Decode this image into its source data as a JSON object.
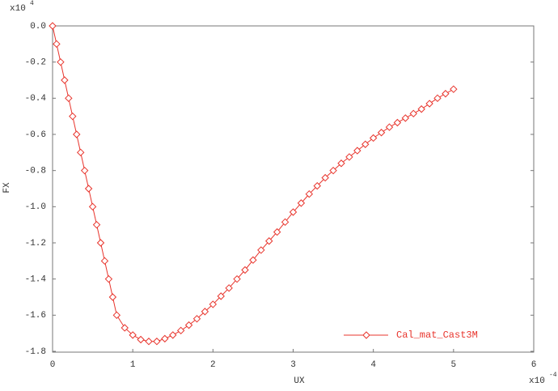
{
  "chart_data": {
    "type": "line",
    "x_label": "UX",
    "y_label": "FX",
    "x_scale": {
      "base": "x10",
      "exponent": "-4"
    },
    "y_scale": {
      "base": "x10",
      "exponent": "4"
    },
    "x": [
      0,
      0.05,
      0.1,
      0.15,
      0.2,
      0.25,
      0.3,
      0.35,
      0.4,
      0.45,
      0.5,
      0.55,
      0.6,
      0.65,
      0.7,
      0.75,
      0.8,
      0.9,
      1.0,
      1.1,
      1.2,
      1.3,
      1.4,
      1.5,
      1.6,
      1.7,
      1.8,
      1.9,
      2.0,
      2.1,
      2.2,
      2.3,
      2.4,
      2.5,
      2.6,
      2.7,
      2.8,
      2.9,
      3.0,
      3.1,
      3.2,
      3.3,
      3.4,
      3.5,
      3.6,
      3.7,
      3.8,
      3.9,
      4.0,
      4.1,
      4.2,
      4.3,
      4.4,
      4.5,
      4.6,
      4.7,
      4.8,
      4.9,
      5.0
    ],
    "series": [
      {
        "name": "Cal_mat_Cast3M",
        "color": "#e8342c",
        "values": [
          0,
          -0.1,
          -0.2,
          -0.3,
          -0.4,
          -0.5,
          -0.6,
          -0.7,
          -0.8,
          -0.9,
          -1.0,
          -1.1,
          -1.2,
          -1.3,
          -1.4,
          -1.5,
          -1.6,
          -1.67,
          -1.71,
          -1.735,
          -1.745,
          -1.745,
          -1.73,
          -1.71,
          -1.685,
          -1.655,
          -1.62,
          -1.58,
          -1.54,
          -1.495,
          -1.45,
          -1.4,
          -1.35,
          -1.295,
          -1.24,
          -1.19,
          -1.14,
          -1.085,
          -1.03,
          -0.98,
          -0.93,
          -0.885,
          -0.84,
          -0.8,
          -0.76,
          -0.725,
          -0.69,
          -0.655,
          -0.62,
          -0.59,
          -0.56,
          -0.535,
          -0.51,
          -0.485,
          -0.46,
          -0.43,
          -0.4,
          -0.375,
          -0.35
        ]
      }
    ],
    "xlim": [
      0,
      6
    ],
    "xticks": [
      0,
      1,
      2,
      3,
      4,
      5,
      6
    ],
    "ylim": [
      -1.8,
      0
    ],
    "yticks": [
      {
        "value": 0,
        "label": "0.0"
      },
      -0.2,
      -0.4,
      -0.6,
      -0.8,
      {
        "value": -1,
        "label": "-1.0"
      },
      -1.2,
      -1.4,
      -1.6,
      -1.8
    ],
    "legend": "lower right",
    "grid": false
  }
}
